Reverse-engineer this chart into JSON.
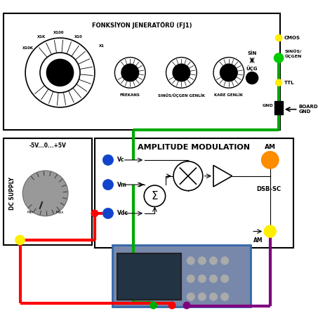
{
  "bg_color": "#ffffff",
  "fg_color": "#000000",
  "title_fj": "FONKSİYON JENERATÖRÜ (FJ1)",
  "title_am": "AMPLITUDE MODULATION",
  "label_frekans": "FREKANS",
  "label_sinusucgen": "SINÜS/ÜÇGEN GENLİK",
  "label_kare": "KARE GENLİK",
  "label_cmos": "CMOS",
  "label_ttl": "TTL",
  "label_gnd": "GND",
  "label_board_gnd": "BOARD\nGND",
  "label_sin": "SİN",
  "label_ucg": "ÜÇG",
  "label_sinus_ucgen": "SINÜS/\nÜÇGEN",
  "label_vc": "Vc",
  "label_vm": "Vm",
  "label_vdc": "Vdc",
  "label_am_out": "AM",
  "label_dsb": "DSB-SC",
  "label_dc": "DC SUPPLY",
  "label_dc_range": "-5V...0...+5V",
  "wire_green": "#00aa00",
  "wire_red": "#ff0000",
  "wire_purple": "#800080",
  "wire_blue": "#0000ff",
  "dot_yellow": "#ffee00",
  "dot_orange": "#ff8c00",
  "dot_blue": "#1144cc",
  "connector_green": "#00cc00"
}
